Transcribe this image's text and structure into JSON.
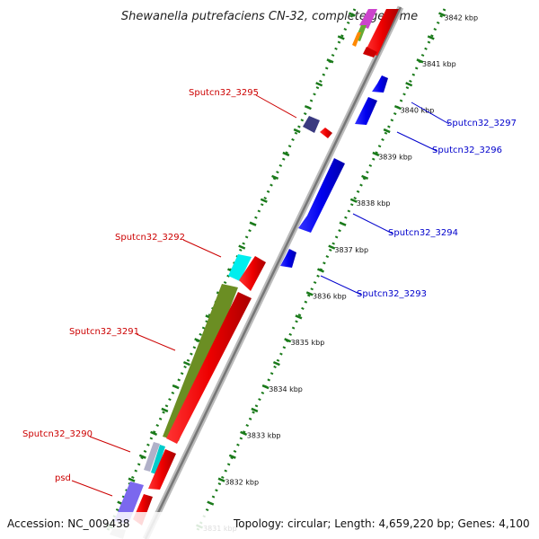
{
  "title": "Shewanella putrefaciens CN-32, complete genome",
  "footer": {
    "accession": "Accession: NC_009438",
    "summary": "Topology: circular; Length: 4,659,220 bp; Genes: 4,100"
  },
  "colors": {
    "reverse_label": "#cc0000",
    "forward_label": "#0000cc",
    "forward_gene": "#0000ee",
    "reverse_gene": "#ee0000",
    "tick": "#1a7a1a",
    "backbone": "#888888"
  },
  "scale": {
    "labels": [
      "3831 kbp",
      "3832 kbp",
      "3833 kbp",
      "3834 kbp",
      "3835 kbp",
      "3836 kbp",
      "3837 kbp",
      "3838 kbp",
      "3839 kbp",
      "3840 kbp",
      "3841 kbp",
      "3842 kbp"
    ]
  },
  "gene_labels": [
    {
      "text": "Sputcn32_3295",
      "strand": "reverse"
    },
    {
      "text": "Sputcn32_3292",
      "strand": "reverse"
    },
    {
      "text": "Sputcn32_3291",
      "strand": "reverse"
    },
    {
      "text": "Sputcn32_3290",
      "strand": "reverse"
    },
    {
      "text": "psd",
      "strand": "reverse"
    },
    {
      "text": "Sputcn32_3297",
      "strand": "forward"
    },
    {
      "text": "Sputcn32_3296",
      "strand": "forward"
    },
    {
      "text": "Sputcn32_3294",
      "strand": "forward"
    },
    {
      "text": "Sputcn32_3293",
      "strand": "forward"
    }
  ]
}
